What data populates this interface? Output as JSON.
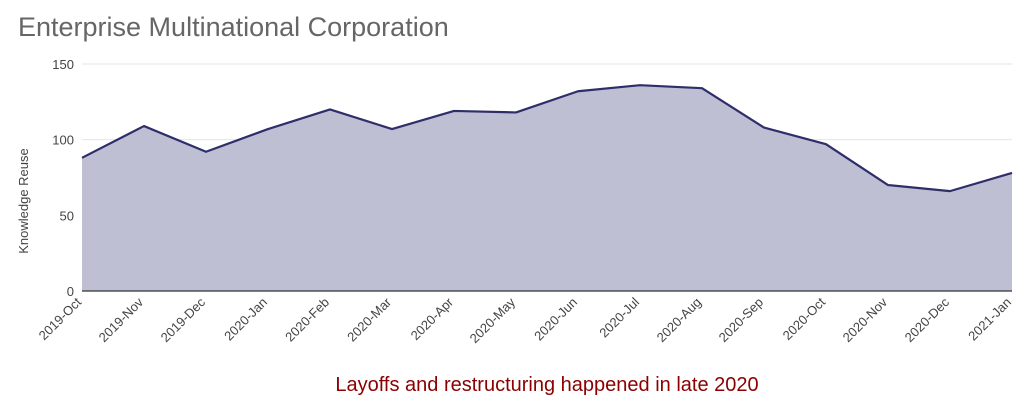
{
  "title": "Enterprise Multinational Corporation",
  "caption": "Layoffs and restructuring happened in late 2020",
  "chart_data": {
    "type": "area",
    "title": "Enterprise Multinational Corporation",
    "ylabel": "Knowledge Reuse",
    "xlabel": "",
    "categories": [
      "2019-Oct",
      "2019-Nov",
      "2019-Dec",
      "2020-Jan",
      "2020-Feb",
      "2020-Mar",
      "2020-Apr",
      "2020-May",
      "2020-Jun",
      "2020-Jul",
      "2020-Aug",
      "2020-Sep",
      "2020-Oct",
      "2020-Nov",
      "2020-Dec",
      "2021-Jan"
    ],
    "values": [
      88,
      109,
      92,
      107,
      120,
      107,
      119,
      118,
      132,
      136,
      134,
      108,
      97,
      70,
      66,
      78
    ],
    "ylim": [
      0,
      150
    ],
    "yticks": [
      0,
      50,
      100,
      150
    ],
    "grid": true,
    "legend": "none",
    "fill_color": "#bfbfd4",
    "line_color": "#2e2e6b"
  }
}
